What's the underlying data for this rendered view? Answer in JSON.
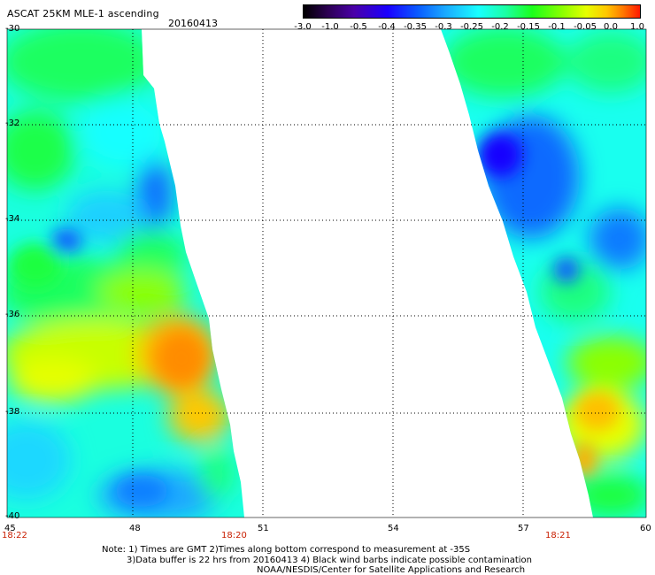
{
  "header": {
    "title": "ASCAT 25KM MLE-1 ascending",
    "date": "20160413"
  },
  "colorbar": {
    "labels": [
      "-3.0",
      "-1.0",
      "-0.5",
      "-0.4",
      "-0.35",
      "-0.3",
      "-0.25",
      "-0.2",
      "-0.15",
      "-0.1",
      "-0.05",
      "0.0",
      "1.0"
    ],
    "colors": [
      "#000000",
      "#4a00a8",
      "#1a00ff",
      "#0a5bff",
      "#1aa8ff",
      "#19ffff",
      "#1affa5",
      "#1aff1a",
      "#8cff00",
      "#e6ff00",
      "#ffc800",
      "#ff7800",
      "#ff1800"
    ]
  },
  "axes": {
    "y_labels": [
      "-30",
      "-32",
      "-34",
      "-36",
      "-38",
      "-40"
    ],
    "x_labels": [
      "45",
      "48",
      "51",
      "54",
      "57",
      "60"
    ],
    "time_labels": [
      "18:22",
      "18:20",
      "18:21"
    ]
  },
  "notes": [
    "Note: 1) Times are GMT 2)Times along bottom correspond to measurement at -35S",
    "3)Data buffer is 22 hrs from 20160413 4) Black wind barbs indicate possible contamination",
    "NOAA/NESDIS/Center for Satellite Applications and Research"
  ]
}
